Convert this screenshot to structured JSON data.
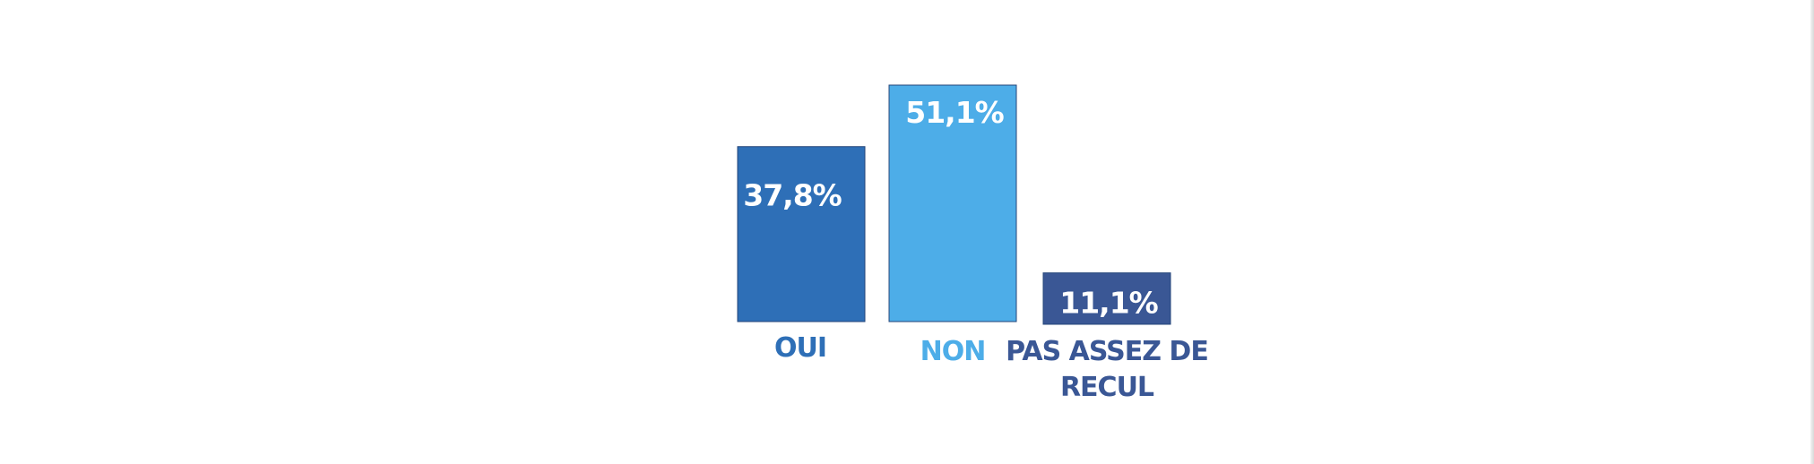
{
  "chart_data": {
    "type": "bar",
    "categories": [
      "OUI",
      "NON",
      "PAS ASSEZ DE RECUL"
    ],
    "category_label_lines": [
      [
        "OUI"
      ],
      [
        "NON"
      ],
      [
        "PAS ASSEZ DE",
        "RECUL"
      ]
    ],
    "values": [
      37.8,
      51.1,
      11.1
    ],
    "value_labels": [
      "37,8%",
      "51,1%",
      "11,1%"
    ],
    "colors": [
      "#2E6FB7",
      "#4DADE8",
      "#3A5795"
    ],
    "label_colors": [
      "#2E6FB7",
      "#4DADE8",
      "#3A5795"
    ],
    "title": "",
    "xlabel": "",
    "ylabel": "",
    "ylim": [
      0,
      51.1
    ],
    "grid": false,
    "legend": "none"
  }
}
